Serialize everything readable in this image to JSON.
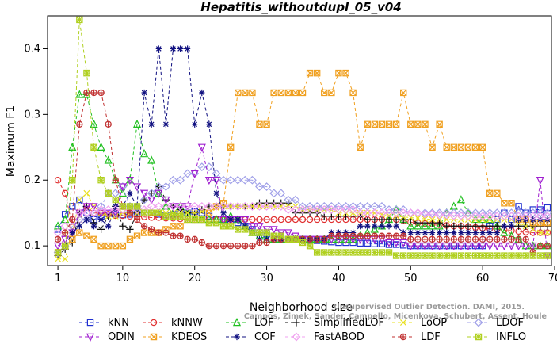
{
  "chart_data": {
    "type": "line",
    "title": "Hepatitis_withoutdupl_05_v04",
    "xlabel": "Neighborhood size",
    "ylabel": "Maximum F1",
    "xlim": [
      0,
      70
    ],
    "ylim": [
      0.07,
      0.45
    ],
    "xticks": [
      1,
      10,
      20,
      30,
      40,
      50,
      60,
      70
    ],
    "yticks": [
      0.1,
      0.2,
      0.3,
      0.4
    ],
    "grid": false,
    "legend_position": "bottom",
    "watermark": [
      "Unsupervised Outlier Detection. DAMI, 2015.",
      "Campos, Zimek, Sander, Campello, Micenkova, Schubert, Assent, Houle"
    ],
    "x": [
      1,
      2,
      3,
      4,
      5,
      6,
      7,
      8,
      9,
      10,
      11,
      12,
      13,
      14,
      15,
      16,
      17,
      18,
      19,
      20,
      21,
      22,
      23,
      24,
      25,
      26,
      27,
      28,
      29,
      30,
      31,
      32,
      33,
      34,
      35,
      36,
      37,
      38,
      39,
      40,
      41,
      42,
      43,
      44,
      45,
      46,
      47,
      48,
      49,
      50,
      51,
      52,
      53,
      54,
      55,
      56,
      57,
      58,
      59,
      60,
      61,
      62,
      63,
      64,
      65,
      66,
      67,
      68,
      69
    ],
    "series": [
      {
        "name": "kNN",
        "color": "#2030d0",
        "marker": "square",
        "values": [
          0.125,
          0.148,
          0.16,
          0.17,
          0.15,
          0.14,
          0.145,
          0.15,
          0.148,
          0.147,
          0.148,
          0.15,
          0.15,
          0.15,
          0.148,
          0.147,
          0.148,
          0.15,
          0.15,
          0.152,
          0.15,
          0.145,
          0.14,
          0.14,
          0.138,
          0.135,
          0.13,
          0.125,
          0.12,
          0.118,
          0.115,
          0.112,
          0.11,
          0.11,
          0.11,
          0.108,
          0.108,
          0.107,
          0.106,
          0.105,
          0.105,
          0.105,
          0.104,
          0.104,
          0.103,
          0.103,
          0.102,
          0.102,
          0.101,
          0.1,
          0.1,
          0.1,
          0.1,
          0.1,
          0.1,
          0.1,
          0.1,
          0.1,
          0.1,
          0.1,
          0.13,
          0.14,
          0.15,
          0.14,
          0.16,
          0.15,
          0.155,
          0.155,
          0.158
        ]
      },
      {
        "name": "kNNW",
        "color": "#e03030",
        "marker": "circle",
        "values": [
          0.2,
          0.18,
          0.13,
          0.14,
          0.16,
          0.15,
          0.15,
          0.148,
          0.146,
          0.146,
          0.145,
          0.145,
          0.144,
          0.143,
          0.143,
          0.142,
          0.142,
          0.141,
          0.14,
          0.14,
          0.14,
          0.14,
          0.14,
          0.14,
          0.14,
          0.14,
          0.14,
          0.14,
          0.14,
          0.14,
          0.14,
          0.14,
          0.14,
          0.14,
          0.14,
          0.14,
          0.14,
          0.14,
          0.14,
          0.14,
          0.14,
          0.14,
          0.14,
          0.14,
          0.14,
          0.14,
          0.14,
          0.14,
          0.138,
          0.136,
          0.135,
          0.134,
          0.133,
          0.132,
          0.131,
          0.13,
          0.13,
          0.129,
          0.128,
          0.127,
          0.126,
          0.125,
          0.124,
          0.123,
          0.122,
          0.121,
          0.12,
          0.12,
          0.12
        ]
      },
      {
        "name": "LOF",
        "color": "#20c020",
        "marker": "triangle-up",
        "values": [
          0.13,
          0.14,
          0.25,
          0.33,
          0.33,
          0.285,
          0.25,
          0.23,
          0.2,
          0.18,
          0.2,
          0.285,
          0.24,
          0.23,
          0.18,
          0.16,
          0.15,
          0.16,
          0.15,
          0.14,
          0.14,
          0.14,
          0.14,
          0.14,
          0.145,
          0.14,
          0.13,
          0.12,
          0.115,
          0.11,
          0.11,
          0.11,
          0.11,
          0.11,
          0.11,
          0.11,
          0.11,
          0.11,
          0.11,
          0.11,
          0.11,
          0.11,
          0.115,
          0.12,
          0.125,
          0.13,
          0.14,
          0.155,
          0.14,
          0.13,
          0.13,
          0.13,
          0.13,
          0.13,
          0.15,
          0.16,
          0.17,
          0.15,
          0.14,
          0.14,
          0.14,
          0.13,
          0.12,
          0.115,
          0.11,
          0.1,
          0.1,
          0.1,
          0.1
        ]
      },
      {
        "name": "SimplifiedLOF",
        "color": "#101010",
        "marker": "plus",
        "values": [
          0.085,
          0.095,
          0.105,
          0.15,
          0.16,
          0.135,
          0.125,
          0.145,
          0.16,
          0.13,
          0.125,
          0.15,
          0.17,
          0.18,
          0.19,
          0.17,
          0.16,
          0.155,
          0.15,
          0.15,
          0.155,
          0.16,
          0.16,
          0.16,
          0.16,
          0.16,
          0.16,
          0.16,
          0.165,
          0.165,
          0.165,
          0.165,
          0.165,
          0.15,
          0.15,
          0.15,
          0.15,
          0.145,
          0.145,
          0.145,
          0.145,
          0.145,
          0.145,
          0.14,
          0.14,
          0.14,
          0.14,
          0.14,
          0.14,
          0.14,
          0.135,
          0.135,
          0.135,
          0.135,
          0.13,
          0.13,
          0.13,
          0.13,
          0.13,
          0.13,
          0.13,
          0.13,
          0.13,
          0.13,
          0.13,
          0.13,
          0.13,
          0.13,
          0.13
        ]
      },
      {
        "name": "LoOP",
        "color": "#e8e020",
        "marker": "x",
        "values": [
          0.08,
          0.08,
          0.12,
          0.17,
          0.18,
          0.16,
          0.15,
          0.145,
          0.145,
          0.15,
          0.15,
          0.15,
          0.15,
          0.15,
          0.15,
          0.15,
          0.15,
          0.15,
          0.15,
          0.15,
          0.152,
          0.155,
          0.158,
          0.16,
          0.16,
          0.16,
          0.16,
          0.16,
          0.16,
          0.16,
          0.16,
          0.16,
          0.16,
          0.16,
          0.155,
          0.155,
          0.155,
          0.155,
          0.155,
          0.15,
          0.15,
          0.15,
          0.15,
          0.15,
          0.15,
          0.148,
          0.146,
          0.145,
          0.144,
          0.143,
          0.142,
          0.141,
          0.14,
          0.14,
          0.14,
          0.14,
          0.14,
          0.14,
          0.14,
          0.14,
          0.14,
          0.14,
          0.14,
          0.14,
          0.135,
          0.13,
          0.125,
          0.12,
          0.12
        ]
      },
      {
        "name": "LDOF",
        "color": "#a0a0e8",
        "marker": "diamond",
        "values": [
          0.09,
          0.1,
          0.13,
          0.14,
          0.14,
          0.15,
          0.16,
          0.18,
          0.18,
          0.19,
          0.16,
          0.16,
          0.17,
          0.18,
          0.19,
          0.19,
          0.2,
          0.2,
          0.21,
          0.21,
          0.22,
          0.22,
          0.21,
          0.2,
          0.2,
          0.2,
          0.2,
          0.2,
          0.19,
          0.19,
          0.18,
          0.18,
          0.17,
          0.17,
          0.16,
          0.16,
          0.16,
          0.16,
          0.16,
          0.16,
          0.16,
          0.16,
          0.16,
          0.16,
          0.16,
          0.16,
          0.155,
          0.155,
          0.155,
          0.15,
          0.15,
          0.15,
          0.15,
          0.15,
          0.15,
          0.15,
          0.15,
          0.15,
          0.15,
          0.15,
          0.15,
          0.15,
          0.15,
          0.15,
          0.15,
          0.15,
          0.15,
          0.15,
          0.15
        ]
      },
      {
        "name": "ODIN",
        "color": "#a020d0",
        "marker": "triangle-down",
        "values": [
          0.1,
          0.11,
          0.12,
          0.15,
          0.16,
          0.16,
          0.15,
          0.15,
          0.15,
          0.19,
          0.2,
          0.19,
          0.18,
          0.17,
          0.18,
          0.17,
          0.16,
          0.16,
          0.16,
          0.21,
          0.25,
          0.2,
          0.2,
          0.14,
          0.14,
          0.14,
          0.14,
          0.13,
          0.13,
          0.125,
          0.125,
          0.12,
          0.12,
          0.115,
          0.11,
          0.11,
          0.11,
          0.11,
          0.11,
          0.11,
          0.11,
          0.11,
          0.11,
          0.11,
          0.11,
          0.11,
          0.105,
          0.105,
          0.105,
          0.1,
          0.1,
          0.1,
          0.1,
          0.1,
          0.1,
          0.1,
          0.1,
          0.1,
          0.1,
          0.1,
          0.1,
          0.1,
          0.1,
          0.1,
          0.1,
          0.1,
          0.1,
          0.2,
          0.085
        ]
      },
      {
        "name": "KDEOS",
        "color": "#f0a020",
        "marker": "square-x",
        "values": [
          0.09,
          0.1,
          0.11,
          0.12,
          0.115,
          0.11,
          0.1,
          0.1,
          0.1,
          0.1,
          0.11,
          0.115,
          0.12,
          0.12,
          0.12,
          0.125,
          0.13,
          0.13,
          0.14,
          0.14,
          0.14,
          0.15,
          0.16,
          0.165,
          0.25,
          0.333,
          0.333,
          0.333,
          0.285,
          0.285,
          0.333,
          0.333,
          0.333,
          0.333,
          0.333,
          0.363,
          0.363,
          0.333,
          0.333,
          0.363,
          0.363,
          0.333,
          0.25,
          0.285,
          0.285,
          0.285,
          0.285,
          0.285,
          0.333,
          0.285,
          0.285,
          0.285,
          0.25,
          0.285,
          0.25,
          0.25,
          0.25,
          0.25,
          0.25,
          0.25,
          0.18,
          0.18,
          0.165,
          0.165,
          0.14,
          0.14,
          0.135,
          0.135,
          0.135
        ]
      },
      {
        "name": "COF",
        "color": "#101080",
        "marker": "asterisk",
        "values": [
          0.09,
          0.1,
          0.12,
          0.13,
          0.14,
          0.13,
          0.14,
          0.13,
          0.16,
          0.16,
          0.18,
          0.16,
          0.333,
          0.285,
          0.4,
          0.285,
          0.4,
          0.4,
          0.4,
          0.285,
          0.333,
          0.285,
          0.18,
          0.15,
          0.14,
          0.14,
          0.13,
          0.12,
          0.11,
          0.11,
          0.11,
          0.11,
          0.11,
          0.11,
          0.11,
          0.11,
          0.11,
          0.11,
          0.12,
          0.12,
          0.12,
          0.12,
          0.13,
          0.13,
          0.13,
          0.13,
          0.13,
          0.13,
          0.12,
          0.12,
          0.12,
          0.12,
          0.12,
          0.12,
          0.12,
          0.12,
          0.12,
          0.12,
          0.12,
          0.12,
          0.12,
          0.12,
          0.13,
          0.13,
          0.14,
          0.14,
          0.14,
          0.14,
          0.14
        ]
      },
      {
        "name": "FastABOD",
        "color": "#f0a0f0",
        "marker": "diamond",
        "values": [
          0.12,
          0.13,
          0.14,
          0.15,
          0.15,
          0.15,
          0.155,
          0.155,
          0.155,
          0.155,
          0.155,
          0.155,
          0.155,
          0.16,
          0.16,
          0.16,
          0.16,
          0.16,
          0.16,
          0.16,
          0.16,
          0.16,
          0.16,
          0.16,
          0.16,
          0.16,
          0.16,
          0.16,
          0.16,
          0.16,
          0.16,
          0.16,
          0.155,
          0.155,
          0.155,
          0.155,
          0.155,
          0.155,
          0.155,
          0.155,
          0.155,
          0.155,
          0.15,
          0.15,
          0.15,
          0.15,
          0.15,
          0.15,
          0.15,
          0.15,
          0.15,
          0.148,
          0.148,
          0.147,
          0.147,
          0.146,
          0.146,
          0.145,
          0.145,
          0.145,
          0.145,
          0.145,
          0.145,
          0.145,
          0.145,
          0.145,
          0.145,
          0.145,
          0.145
        ]
      },
      {
        "name": "LDF",
        "color": "#c03030",
        "marker": "circle-plus",
        "values": [
          0.11,
          0.12,
          0.14,
          0.285,
          0.333,
          0.333,
          0.333,
          0.285,
          0.2,
          0.16,
          0.15,
          0.14,
          0.13,
          0.125,
          0.12,
          0.12,
          0.115,
          0.115,
          0.11,
          0.11,
          0.105,
          0.1,
          0.1,
          0.1,
          0.1,
          0.1,
          0.1,
          0.1,
          0.105,
          0.105,
          0.11,
          0.11,
          0.11,
          0.11,
          0.11,
          0.11,
          0.11,
          0.11,
          0.115,
          0.115,
          0.115,
          0.115,
          0.115,
          0.115,
          0.115,
          0.115,
          0.115,
          0.115,
          0.115,
          0.11,
          0.11,
          0.11,
          0.11,
          0.11,
          0.11,
          0.11,
          0.11,
          0.11,
          0.11,
          0.11,
          0.11,
          0.11,
          0.11,
          0.11,
          0.11,
          0.11,
          0.09,
          0.1,
          0.1
        ]
      },
      {
        "name": "INFLO",
        "color": "#b0d020",
        "marker": "star",
        "values": [
          0.09,
          0.1,
          0.2,
          0.444,
          0.363,
          0.25,
          0.2,
          0.18,
          0.17,
          0.16,
          0.16,
          0.16,
          0.15,
          0.15,
          0.15,
          0.145,
          0.145,
          0.145,
          0.14,
          0.14,
          0.14,
          0.135,
          0.135,
          0.13,
          0.13,
          0.125,
          0.125,
          0.12,
          0.12,
          0.12,
          0.115,
          0.115,
          0.11,
          0.11,
          0.105,
          0.1,
          0.09,
          0.09,
          0.09,
          0.09,
          0.09,
          0.09,
          0.09,
          0.09,
          0.09,
          0.09,
          0.09,
          0.085,
          0.085,
          0.085,
          0.085,
          0.085,
          0.085,
          0.085,
          0.085,
          0.085,
          0.085,
          0.085,
          0.085,
          0.085,
          0.085,
          0.085,
          0.085,
          0.085,
          0.085,
          0.085,
          0.085,
          0.085,
          0.085
        ]
      }
    ]
  }
}
